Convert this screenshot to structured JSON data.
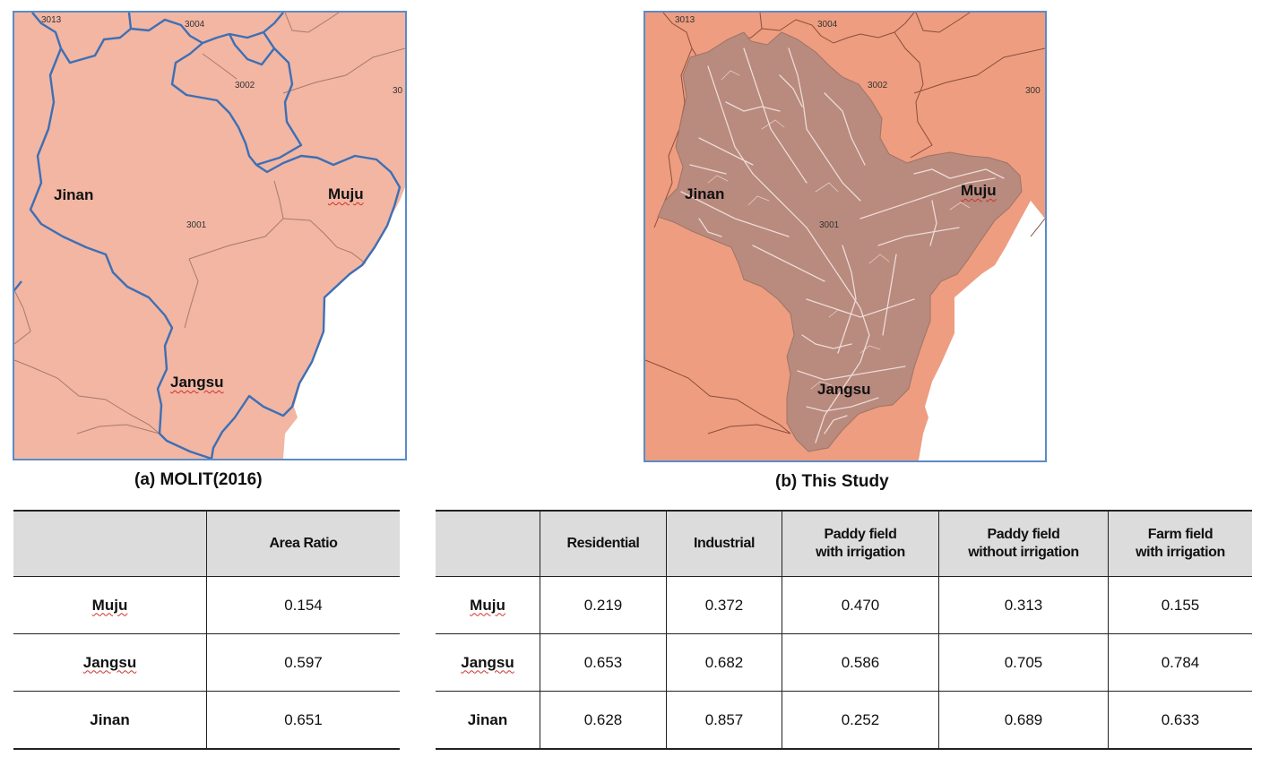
{
  "map_a": {
    "caption": "(a) MOLIT(2016)",
    "places": {
      "jinan": "Jinan",
      "muju": "Muju",
      "jangsu": "Jangsu"
    },
    "codes": {
      "c3013": "3013",
      "c3004": "3004",
      "c3002": "3002",
      "c30": "30",
      "c3001": "3001"
    },
    "colors": {
      "land": "#f2b6a3",
      "boundary": "#3d6fb5",
      "road": "#a77a6b"
    }
  },
  "map_b": {
    "caption": "(b) This Study",
    "places": {
      "jinan": "Jinan",
      "muju": "Muju",
      "jangsu": "Jangsu"
    },
    "codes": {
      "c3013": "3013",
      "c3004": "3004",
      "c3002": "3002",
      "c300": "300",
      "c3001": "3001"
    },
    "colors": {
      "land": "#ee9d80",
      "basin": "#b98a7e",
      "streams": "#f3e4e0"
    }
  },
  "table_a": {
    "headers": [
      "",
      "Area Ratio"
    ],
    "rows": [
      {
        "name": "Muju",
        "values": [
          "0.154"
        ]
      },
      {
        "name": "Jangsu",
        "values": [
          "0.597"
        ]
      },
      {
        "name": "Jinan",
        "values": [
          "0.651"
        ]
      }
    ]
  },
  "table_b": {
    "headers": [
      "",
      "Residential",
      "Industrial",
      "Paddy field\nwith irrigation",
      "Paddy field\nwithout irrigation",
      "Farm field\nwith irrigation"
    ],
    "rows": [
      {
        "name": "Muju",
        "values": [
          "0.219",
          "0.372",
          "0.470",
          "0.313",
          "0.155"
        ]
      },
      {
        "name": "Jangsu",
        "values": [
          "0.653",
          "0.682",
          "0.586",
          "0.705",
          "0.784"
        ]
      },
      {
        "name": "Jinan",
        "values": [
          "0.628",
          "0.857",
          "0.252",
          "0.689",
          "0.633"
        ]
      }
    ]
  }
}
